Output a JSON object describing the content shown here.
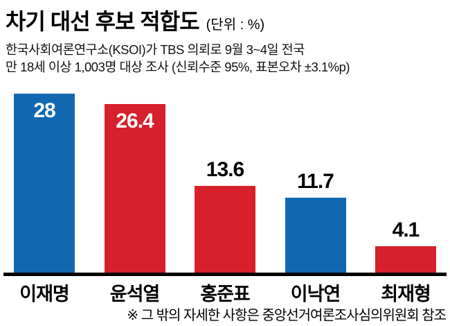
{
  "header": {
    "title": "차기 대선 후보 적합도",
    "unit": "(단위 : %)",
    "subtitle_line1": "한국사회여론연구소(KSOI)가 TBS 의뢰로 9월 3~4일 전국",
    "subtitle_line2": "만 18세 이상 1,003명 대상 조사 (신뢰수준 95%, 표본오차 ±3.1%p)"
  },
  "chart_data": {
    "type": "bar",
    "title": "차기 대선 후보 적합도",
    "unit_label": "(단위 : %)",
    "categories": [
      "이재명",
      "윤석열",
      "홍준표",
      "이낙연",
      "최재형"
    ],
    "values": [
      28,
      26.4,
      13.6,
      11.7,
      4.1
    ],
    "colors": [
      "#1168b1",
      "#d6202b",
      "#d6202b",
      "#1168b1",
      "#d6202b"
    ],
    "value_label_inside": [
      true,
      true,
      false,
      false,
      false
    ],
    "ylim": [
      0,
      28
    ],
    "grid": false,
    "legend": "none"
  },
  "footer": {
    "note": "※ 그 밖의 자세한 사항은 중앙선거여론조사심의위원회 참조"
  }
}
